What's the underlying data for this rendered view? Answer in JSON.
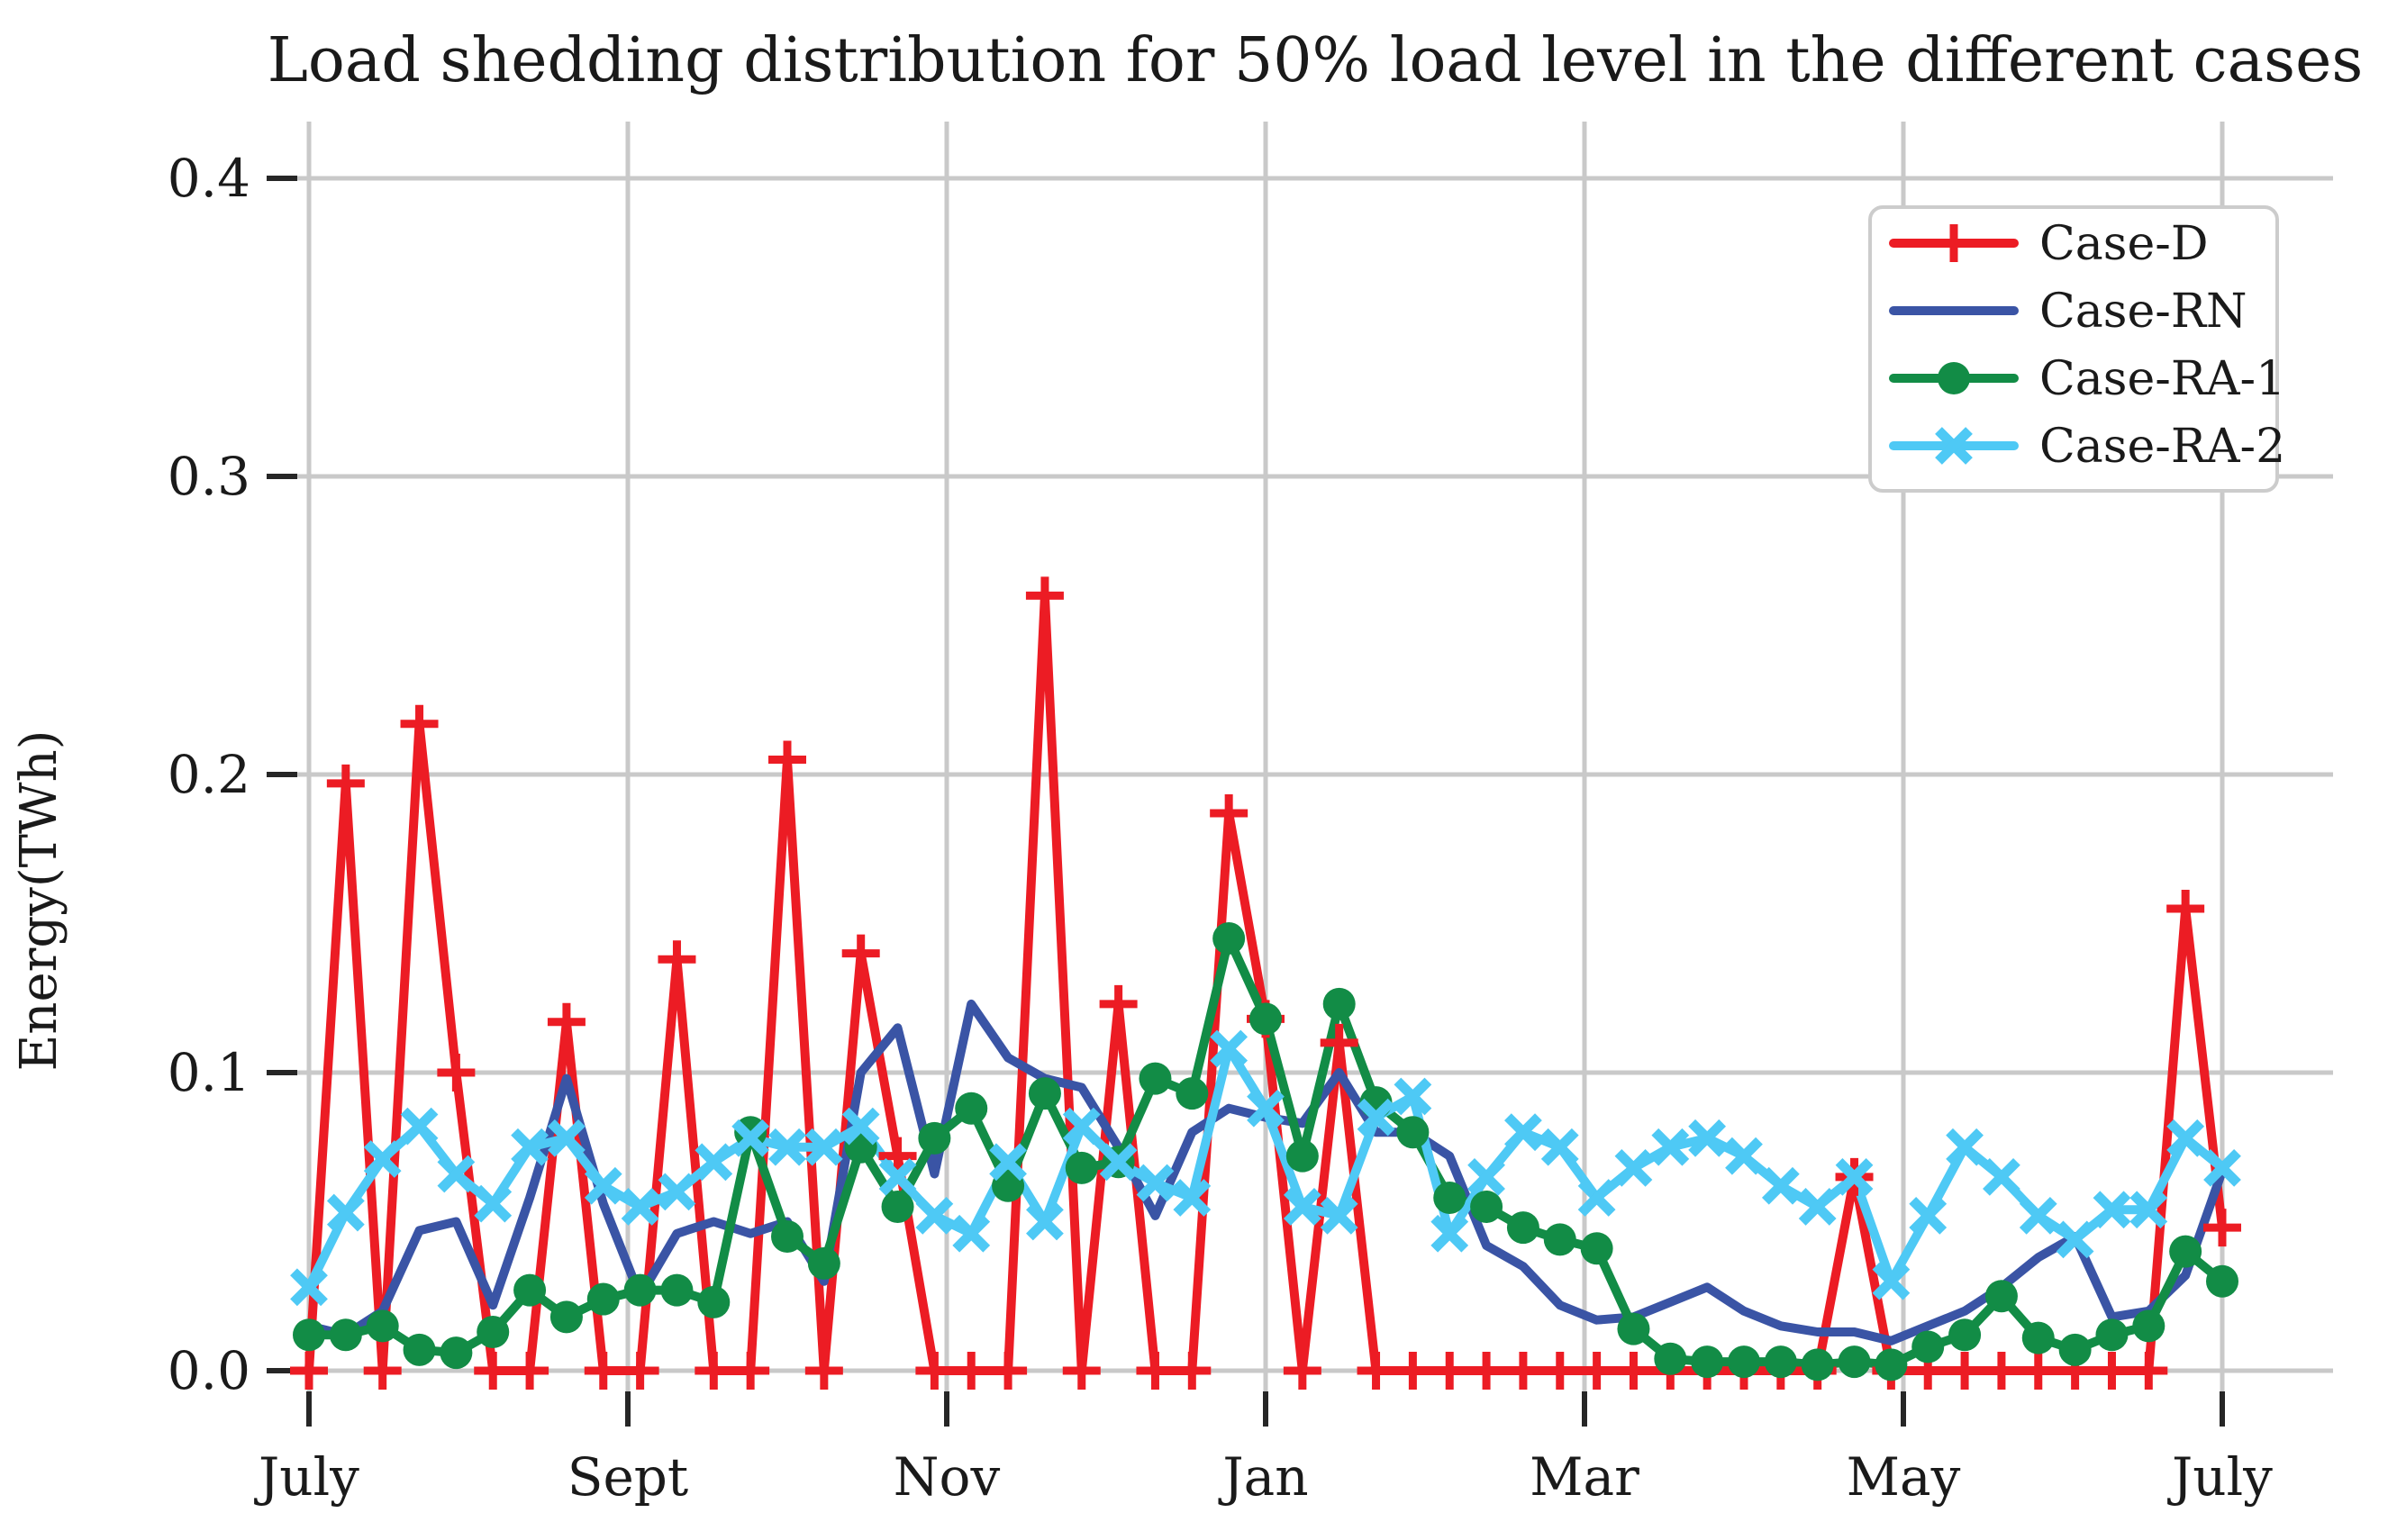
{
  "figure": {
    "background": "#ffffff",
    "text_color": "#1a1a1a",
    "grid_color": "#c9c9c9",
    "tick_color": "#262626",
    "legend_border_color": "#cccccc"
  },
  "chart_data": {
    "type": "line",
    "title": "Load shedding distribution for 50% load level in the different cases",
    "xlabel": "",
    "ylabel": "Energy(TWh)",
    "x_tick_labels": [
      "July",
      "Sept",
      "Nov",
      "Jan",
      "Mar",
      "May",
      "July"
    ],
    "y_tick_labels": [
      "0.0",
      "0.1",
      "0.2",
      "0.3",
      "0.4"
    ],
    "y_tick_values": [
      0.0,
      0.1,
      0.2,
      0.3,
      0.4
    ],
    "ylim": [
      -0.007,
      0.42
    ],
    "x_points": "53 weekly values from July to July",
    "grid": true,
    "legend_position": "upper right",
    "series": [
      {
        "name": "Case-D",
        "color": "#ec1c24",
        "marker": "plus",
        "values": [
          0,
          0.197,
          0,
          0.217,
          0.1,
          0,
          0,
          0.117,
          0,
          0,
          0.138,
          0,
          0,
          0.205,
          0,
          0.14,
          0.072,
          0,
          0,
          0,
          0.26,
          0,
          0.123,
          0,
          0,
          0.187,
          0.118,
          0,
          0.11,
          0,
          0,
          0,
          0,
          0,
          0,
          0,
          0,
          0,
          0,
          0,
          0,
          0,
          0.065,
          0,
          0,
          0,
          0,
          0,
          0,
          0,
          0,
          0.155,
          0.048
        ]
      },
      {
        "name": "Case-RN",
        "color": "#3a54a5",
        "marker": "none",
        "values": [
          0.015,
          0.012,
          0.02,
          0.047,
          0.05,
          0.022,
          0.058,
          0.098,
          0.056,
          0.025,
          0.046,
          0.05,
          0.046,
          0.05,
          0.03,
          0.1,
          0.115,
          0.066,
          0.123,
          0.105,
          0.098,
          0.095,
          0.075,
          0.052,
          0.08,
          0.088,
          0.085,
          0.083,
          0.1,
          0.08,
          0.08,
          0.072,
          0.042,
          0.035,
          0.022,
          0.017,
          0.018,
          0.023,
          0.028,
          0.02,
          0.015,
          0.013,
          0.013,
          0.01,
          0.015,
          0.02,
          0.028,
          0.038,
          0.045,
          0.018,
          0.02,
          0.032,
          0.067
        ]
      },
      {
        "name": "Case-RA-1",
        "color": "#128c46",
        "marker": "circle",
        "values": [
          0.012,
          0.012,
          0.015,
          0.007,
          0.006,
          0.013,
          0.027,
          0.018,
          0.024,
          0.027,
          0.027,
          0.023,
          0.08,
          0.045,
          0.036,
          0.075,
          0.055,
          0.078,
          0.088,
          0.062,
          0.093,
          0.068,
          0.07,
          0.098,
          0.093,
          0.145,
          0.118,
          0.072,
          0.123,
          0.09,
          0.08,
          0.058,
          0.055,
          0.048,
          0.044,
          0.041,
          0.014,
          0.004,
          0.003,
          0.003,
          0.003,
          0.002,
          0.003,
          0.002,
          0.008,
          0.012,
          0.025,
          0.011,
          0.007,
          0.012,
          0.015,
          0.04,
          0.03
        ]
      },
      {
        "name": "Case-RA-2",
        "color": "#4ec9f5",
        "marker": "x",
        "values": [
          0.028,
          0.053,
          0.071,
          0.082,
          0.066,
          0.056,
          0.075,
          0.078,
          0.062,
          0.055,
          0.06,
          0.07,
          0.078,
          0.075,
          0.075,
          0.082,
          0.065,
          0.052,
          0.046,
          0.07,
          0.05,
          0.082,
          0.07,
          0.063,
          0.058,
          0.108,
          0.088,
          0.055,
          0.052,
          0.085,
          0.092,
          0.046,
          0.065,
          0.08,
          0.075,
          0.058,
          0.068,
          0.075,
          0.078,
          0.072,
          0.062,
          0.055,
          0.065,
          0.03,
          0.052,
          0.075,
          0.065,
          0.052,
          0.044,
          0.054,
          0.054,
          0.078,
          0.068
        ]
      }
    ]
  }
}
